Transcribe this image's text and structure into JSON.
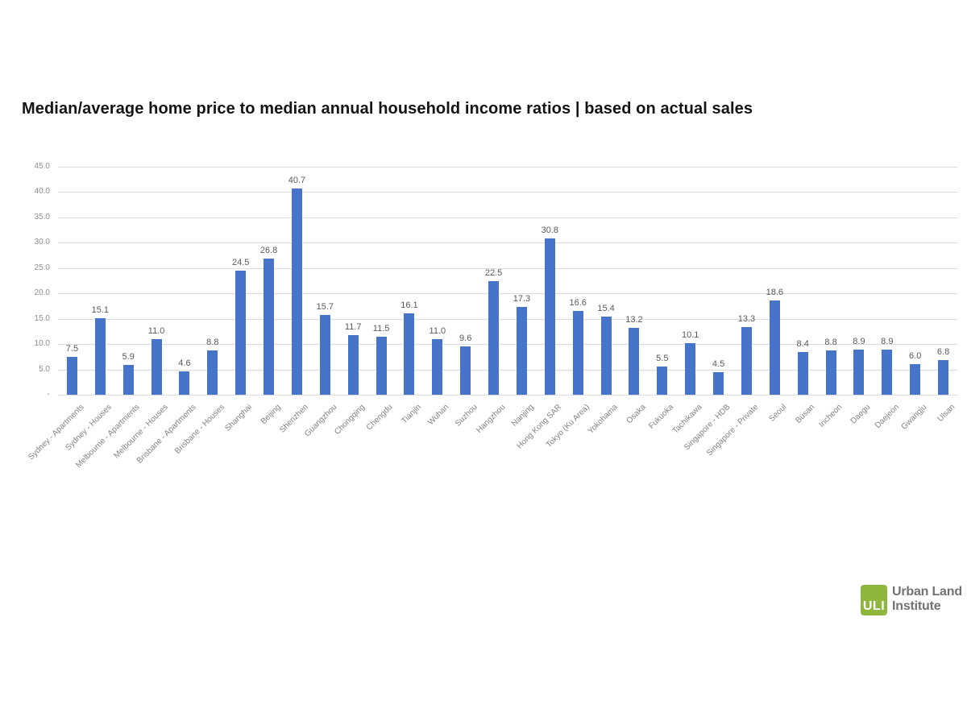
{
  "title": "Median/average home price to median annual household income ratios | based on actual sales",
  "chart_data": {
    "type": "bar",
    "title": "Median/average home price to median annual household income ratios | based on actual sales",
    "categories": [
      "Sydney - Apartments",
      "Sydney - Houses",
      "Melbourne - Apartments",
      "Melbourne - Houses",
      "Brisbane - Apartments",
      "Brisbane - Houses",
      "Shanghai",
      "Beijing",
      "Shenzhen",
      "Guangzhou",
      "Chongqing",
      "Chengdu",
      "Tianjin",
      "Wuhan",
      "Suzhou",
      "Hangzhou",
      "Nanjing",
      "Hong Kong SAR",
      "Tokyo (Ku Area)",
      "Yokohama",
      "Osaka",
      "Fukuoka",
      "Tachikawa",
      "Singapore - HDB",
      "Singapore - Private",
      "Seoul",
      "Busan",
      "Incheon",
      "Daegu",
      "Daejeon",
      "Gwangju",
      "Ulsan"
    ],
    "values": [
      7.5,
      15.1,
      5.9,
      11.0,
      4.6,
      8.8,
      24.5,
      26.8,
      40.7,
      15.7,
      11.7,
      11.5,
      16.1,
      11.0,
      9.6,
      22.5,
      17.3,
      30.8,
      16.6,
      15.4,
      13.2,
      5.5,
      10.1,
      4.5,
      13.3,
      18.6,
      8.4,
      8.8,
      8.9,
      8.9,
      6.0,
      6.8
    ],
    "xlabel": "",
    "ylabel": "",
    "ylim": [
      0,
      45
    ],
    "yticks": [
      "-",
      "5.0",
      "10.0",
      "15.0",
      "20.0",
      "25.0",
      "30.0",
      "35.0",
      "40.0",
      "45.0"
    ],
    "grid": true,
    "legend": false,
    "data_labels": true,
    "bar_color": "#4674c8",
    "gridline_color": "#dcdcdc"
  },
  "logo": {
    "icon_text": "ULI",
    "line1": "Urban Land",
    "line2": "Institute",
    "icon_color": "#90b73d",
    "text_color": "#717276"
  }
}
